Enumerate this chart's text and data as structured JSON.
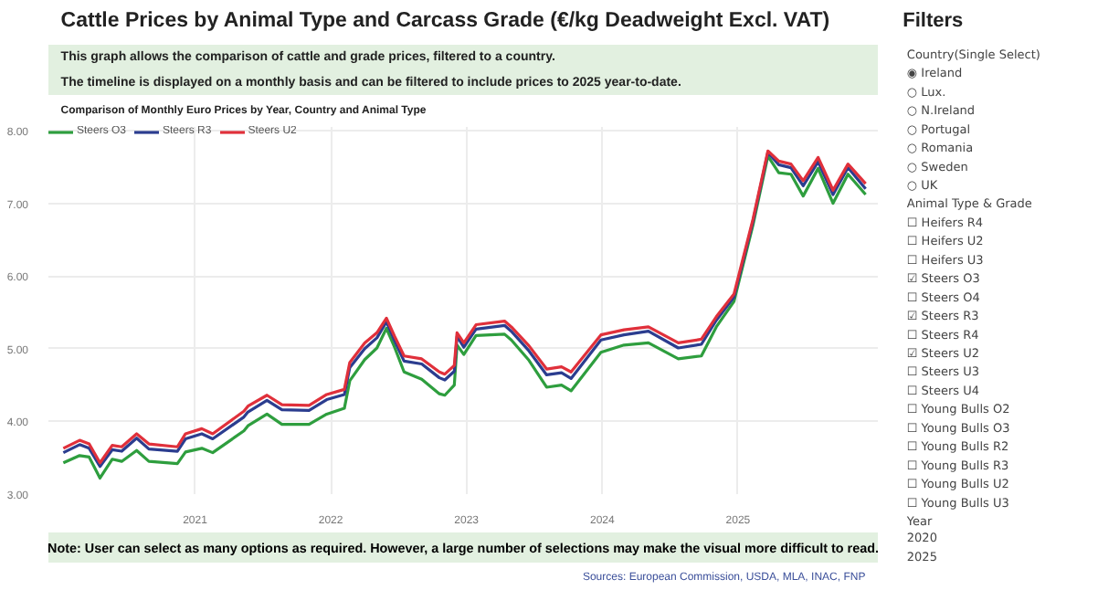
{
  "chart_data": [
    {
      "type": "line",
      "title": "Cattle Prices by Animal Type and Carcass Grade (€/kg Deadweight Excl. VAT)",
      "subtitle": "This graph allows the comparison of cattle and grade prices, filtered to a country.\nThe timeline is displayed on a monthly basis and can be filtered to include prices to 2025 year-to-date.",
      "annotations": [
        "Comparison of Monthly Euro Prices by Year, Country and Animal Type",
        "Note: User can select as many options as required. However, a large number of selections may make the visual more difficult to read.",
        "Sources: European Commission, USDA, MLA, INAC, FNP"
      ],
      "x": [
        2020.03,
        2020.15,
        2020.22,
        2020.3,
        2020.39,
        2020.46,
        2020.57,
        2020.66,
        2020.87,
        2020.93,
        2021.05,
        2021.13,
        2021.36,
        2021.39,
        2021.53,
        2021.64,
        2021.84,
        2021.97,
        2022.1,
        2022.14,
        2022.25,
        2022.34,
        2022.41,
        2022.47,
        2022.54,
        2022.67,
        2022.8,
        2022.84,
        2022.91,
        2022.93,
        2022.98,
        2023.07,
        2023.28,
        2023.33,
        2023.46,
        2023.59,
        2023.7,
        2023.77,
        2023.99,
        2024.16,
        2024.34,
        2024.56,
        2024.73,
        2024.84,
        2024.97,
        2025.11,
        2025.22,
        2025.3,
        2025.39,
        2025.48,
        2025.59,
        2025.7,
        2025.81,
        2025.94
      ],
      "series": [
        {
          "name": "Steers O3",
          "color": "#2e9e3e",
          "values": [
            3.43,
            3.53,
            3.51,
            3.22,
            3.48,
            3.45,
            3.6,
            3.45,
            3.42,
            3.58,
            3.63,
            3.57,
            3.87,
            3.94,
            4.1,
            3.96,
            3.96,
            4.1,
            4.18,
            4.56,
            4.85,
            5.01,
            5.28,
            5.02,
            4.68,
            4.58,
            4.38,
            4.36,
            4.5,
            5.05,
            4.92,
            5.18,
            5.2,
            5.12,
            4.84,
            4.47,
            4.5,
            4.42,
            4.95,
            5.05,
            5.08,
            4.86,
            4.9,
            5.3,
            5.65,
            6.7,
            7.65,
            7.42,
            7.4,
            7.1,
            7.48,
            7.0,
            7.4,
            7.12
          ]
        },
        {
          "name": "Steers R3",
          "color": "#2b3d8f",
          "values": [
            3.57,
            3.68,
            3.63,
            3.38,
            3.61,
            3.59,
            3.77,
            3.62,
            3.59,
            3.76,
            3.83,
            3.76,
            4.06,
            4.13,
            4.29,
            4.16,
            4.15,
            4.3,
            4.37,
            4.74,
            5.0,
            5.15,
            5.37,
            5.11,
            4.83,
            4.79,
            4.6,
            4.57,
            4.69,
            5.17,
            5.02,
            5.27,
            5.32,
            5.24,
            4.97,
            4.64,
            4.67,
            4.59,
            5.12,
            5.19,
            5.24,
            5.01,
            5.06,
            5.39,
            5.71,
            6.75,
            7.7,
            7.53,
            7.49,
            7.24,
            7.57,
            7.12,
            7.49,
            7.2
          ]
        },
        {
          "name": "Steers U2",
          "color": "#e0303b",
          "values": [
            3.63,
            3.74,
            3.69,
            3.43,
            3.67,
            3.65,
            3.83,
            3.69,
            3.65,
            3.83,
            3.9,
            3.83,
            4.14,
            4.21,
            4.36,
            4.23,
            4.22,
            4.37,
            4.44,
            4.81,
            5.08,
            5.22,
            5.42,
            5.17,
            4.9,
            4.86,
            4.68,
            4.65,
            4.77,
            5.22,
            5.08,
            5.33,
            5.38,
            5.3,
            5.04,
            4.72,
            4.75,
            4.68,
            5.19,
            5.26,
            5.3,
            5.08,
            5.13,
            5.44,
            5.75,
            6.78,
            7.72,
            7.58,
            7.54,
            7.31,
            7.63,
            7.18,
            7.54,
            7.27
          ]
        }
      ],
      "xlim": [
        2019.92,
        2026.03
      ],
      "xticks": [
        2021,
        2022,
        2023,
        2024,
        2025
      ],
      "ylim": [
        3,
        8.05
      ],
      "yticks": [
        {
          "value": 3,
          "label": "3.00"
        },
        {
          "value": 4,
          "label": "4.00"
        },
        {
          "value": 5,
          "label": "5.00"
        },
        {
          "value": 6,
          "label": "6.00"
        },
        {
          "value": 7,
          "label": "7.00"
        },
        {
          "value": 8,
          "label": "8.00"
        }
      ],
      "grid": true,
      "legend": "top left",
      "marker": "none",
      "line_style": "solid"
    },
    {
      "type": "other",
      "title": "Filters",
      "annotations": [
        "Country(Single Select)",
        "◉ Ireland",
        "○ Lux.",
        "○ N.Ireland",
        "○ Portugal",
        "○ Romania",
        "○ Sweden",
        "○ UK",
        "Animal Type & Grade",
        "☐ Heifers R4",
        "☐ Heifers U2",
        "☐ Heifers U3",
        "☑ Steers O3",
        "☐ Steers O4",
        "☑ Steers R3",
        "☐ Steers R4",
        "☑ Steers U2",
        "☐ Steers U3",
        "☐ Steers U4",
        "☐ Young Bulls O2",
        "☐ Young Bulls O3",
        "☐ Young Bulls R2",
        "☐ Young Bulls R3",
        "☐ Young Bulls U2",
        "☐ Young Bulls U3",
        "Year",
        "2020",
        "2025"
      ]
    }
  ]
}
